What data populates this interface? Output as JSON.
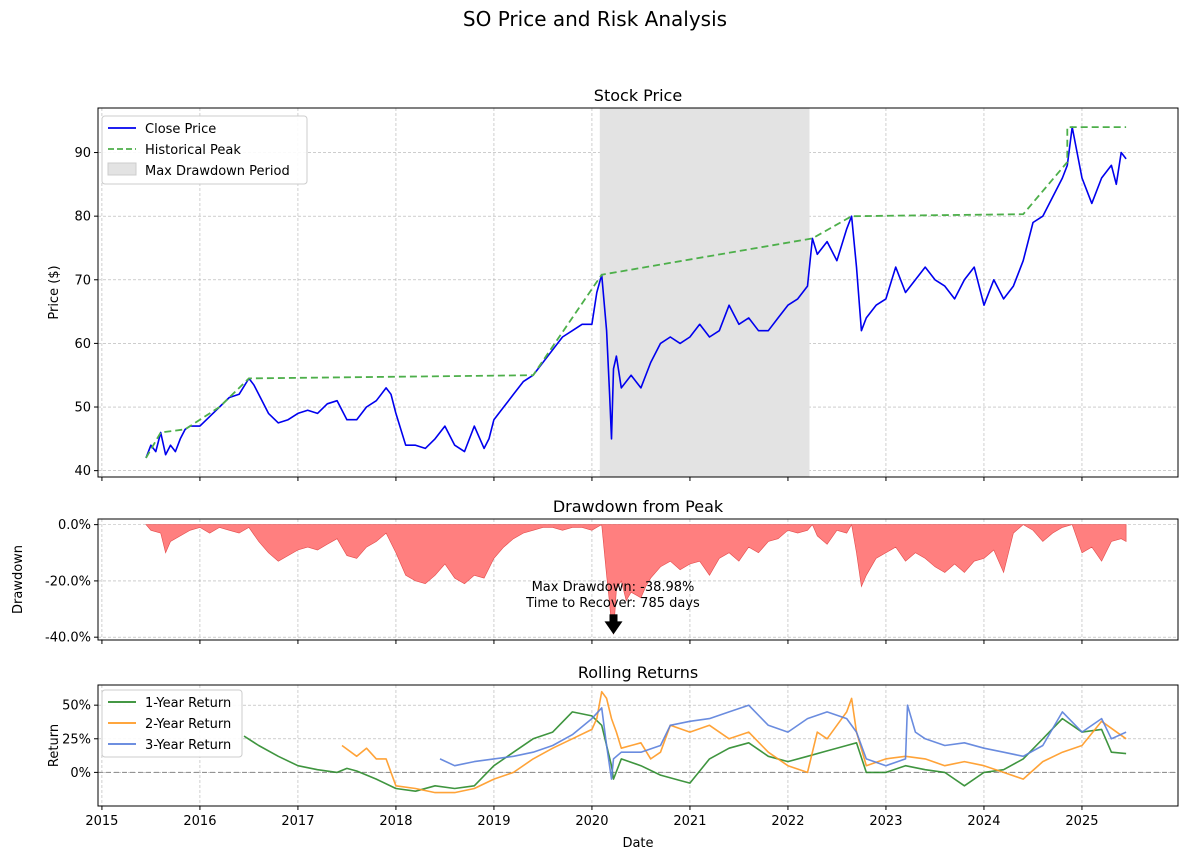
{
  "figure": {
    "suptitle": "SO Price and Risk Analysis"
  },
  "colors": {
    "price": "#0000ee",
    "peak": "#4daf4a",
    "drawdown_fill": "#ff7f7f",
    "drawdown_edge": "#e34a4a",
    "shade": "#e3e3e3",
    "r1": "#2a8a2a",
    "r2": "#ff9922",
    "r3": "#5a7fdc",
    "grid": "#b0b0b0"
  },
  "chart_data": [
    {
      "type": "line",
      "title": "Stock Price",
      "xlabel": "",
      "ylabel": "Price ($)",
      "ylim": [
        39,
        97
      ],
      "yticks": [
        40,
        50,
        60,
        70,
        80,
        90
      ],
      "ytick_labels": [
        "40",
        "50",
        "60",
        "70",
        "80",
        "90"
      ],
      "xlim": [
        2014.96,
        2025.98
      ],
      "grid": true,
      "legend": {
        "position": "top-left",
        "entries": [
          "Close Price",
          "Historical Peak",
          "Max Drawdown Period"
        ]
      },
      "shaded_region": {
        "label": "Max Drawdown Period",
        "x": [
          2020.08,
          2022.22
        ]
      },
      "series": [
        {
          "name": "Close Price",
          "style": "solid",
          "x": [
            2015.45,
            2015.5,
            2015.55,
            2015.6,
            2015.65,
            2015.7,
            2015.75,
            2015.8,
            2015.85,
            2015.9,
            2016.0,
            2016.1,
            2016.2,
            2016.3,
            2016.4,
            2016.5,
            2016.55,
            2016.6,
            2016.7,
            2016.8,
            2016.9,
            2017.0,
            2017.1,
            2017.2,
            2017.3,
            2017.4,
            2017.5,
            2017.6,
            2017.7,
            2017.8,
            2017.9,
            2017.95,
            2018.0,
            2018.1,
            2018.2,
            2018.3,
            2018.4,
            2018.5,
            2018.6,
            2018.7,
            2018.8,
            2018.9,
            2018.95,
            2019.0,
            2019.1,
            2019.2,
            2019.3,
            2019.4,
            2019.5,
            2019.6,
            2019.7,
            2019.8,
            2019.9,
            2020.0,
            2020.05,
            2020.1,
            2020.15,
            2020.18,
            2020.2,
            2020.22,
            2020.25,
            2020.3,
            2020.4,
            2020.5,
            2020.6,
            2020.7,
            2020.8,
            2020.9,
            2021.0,
            2021.1,
            2021.2,
            2021.3,
            2021.4,
            2021.5,
            2021.6,
            2021.7,
            2021.8,
            2021.9,
            2022.0,
            2022.1,
            2022.2,
            2022.25,
            2022.3,
            2022.4,
            2022.5,
            2022.6,
            2022.65,
            2022.7,
            2022.75,
            2022.8,
            2022.9,
            2023.0,
            2023.1,
            2023.2,
            2023.3,
            2023.4,
            2023.5,
            2023.6,
            2023.7,
            2023.8,
            2023.9,
            2024.0,
            2024.1,
            2024.2,
            2024.3,
            2024.4,
            2024.5,
            2024.6,
            2024.7,
            2024.8,
            2024.85,
            2024.9,
            2025.0,
            2025.1,
            2025.2,
            2025.3,
            2025.35,
            2025.4,
            2025.45
          ],
          "y": [
            42,
            44,
            43,
            46,
            42.5,
            44,
            43,
            45,
            46.5,
            47,
            47,
            48.5,
            50,
            51.5,
            52,
            54.5,
            53.5,
            52,
            49,
            47.5,
            48,
            49,
            49.5,
            49,
            50.5,
            51,
            48,
            48,
            50,
            51,
            53,
            52,
            49,
            44,
            44,
            43.5,
            45,
            47,
            44,
            43,
            47,
            43.5,
            45,
            48,
            50,
            52,
            54,
            55,
            57,
            59,
            61,
            62,
            63,
            63,
            68,
            70.8,
            62,
            52,
            45,
            56,
            58,
            53,
            55,
            53,
            57,
            60,
            61,
            60,
            61,
            63,
            61,
            62,
            66,
            63,
            64,
            62,
            62,
            64,
            66,
            67,
            69,
            76.5,
            74,
            76,
            73,
            78,
            80,
            72,
            62,
            64,
            66,
            67,
            72,
            68,
            70,
            72,
            70,
            69,
            67,
            70,
            72,
            66,
            70,
            67,
            69,
            73,
            79,
            80,
            83,
            86,
            88,
            94,
            86,
            82,
            86,
            88,
            85,
            90,
            89
          ]
        },
        {
          "name": "Historical Peak",
          "style": "dashed",
          "x": [
            2015.45,
            2015.6,
            2015.85,
            2015.85,
            2016.2,
            2016.2,
            2016.5,
            2016.5,
            2019.4,
            2019.4,
            2020.1,
            2020.1,
            2022.25,
            2022.25,
            2022.65,
            2022.65,
            2024.4,
            2024.4,
            2024.85,
            2024.85,
            2025.45
          ],
          "y": [
            42,
            46,
            46.5,
            46.5,
            50,
            50,
            54.5,
            54.5,
            55,
            55,
            70.8,
            70.8,
            76.5,
            76.5,
            80,
            80,
            80.3,
            80.3,
            88.5,
            94,
            94
          ]
        }
      ]
    },
    {
      "type": "area",
      "title": "Drawdown from Peak",
      "xlabel": "",
      "ylabel": "Drawdown",
      "ylim": [
        -41,
        2
      ],
      "yticks": [
        0,
        -20,
        -40
      ],
      "ytick_labels": [
        "0.0%",
        "-20.0%",
        "-40.0%"
      ],
      "xlim": [
        2014.96,
        2025.98
      ],
      "grid": true,
      "annotation": {
        "text_line1": "Max Drawdown: -38.98%",
        "text_line2": "Time to Recover: 785 days",
        "x": 2020.22,
        "y": -38.98
      },
      "series": [
        {
          "name": "Drawdown",
          "x": [
            2015.45,
            2015.5,
            2015.6,
            2015.65,
            2015.7,
            2015.8,
            2015.9,
            2016.0,
            2016.1,
            2016.2,
            2016.3,
            2016.4,
            2016.5,
            2016.6,
            2016.7,
            2016.8,
            2016.9,
            2017.0,
            2017.1,
            2017.2,
            2017.3,
            2017.4,
            2017.5,
            2017.6,
            2017.7,
            2017.8,
            2017.9,
            2018.0,
            2018.1,
            2018.2,
            2018.3,
            2018.4,
            2018.5,
            2018.6,
            2018.7,
            2018.8,
            2018.9,
            2019.0,
            2019.1,
            2019.2,
            2019.3,
            2019.4,
            2019.5,
            2019.6,
            2019.7,
            2019.8,
            2019.9,
            2020.0,
            2020.05,
            2020.1,
            2020.15,
            2020.18,
            2020.2,
            2020.22,
            2020.25,
            2020.3,
            2020.35,
            2020.4,
            2020.45,
            2020.5,
            2020.55,
            2020.6,
            2020.7,
            2020.8,
            2020.9,
            2021.0,
            2021.1,
            2021.2,
            2021.3,
            2021.4,
            2021.5,
            2021.6,
            2021.7,
            2021.8,
            2021.9,
            2022.0,
            2022.1,
            2022.2,
            2022.25,
            2022.3,
            2022.4,
            2022.5,
            2022.6,
            2022.65,
            2022.7,
            2022.75,
            2022.8,
            2022.85,
            2022.9,
            2023.0,
            2023.1,
            2023.2,
            2023.3,
            2023.4,
            2023.5,
            2023.6,
            2023.7,
            2023.8,
            2023.9,
            2024.0,
            2024.1,
            2024.2,
            2024.3,
            2024.4,
            2024.5,
            2024.6,
            2024.7,
            2024.8,
            2024.9,
            2025.0,
            2025.1,
            2025.2,
            2025.3,
            2025.4,
            2025.45
          ],
          "y": [
            0,
            -2,
            -3,
            -10,
            -6,
            -4,
            -2,
            -1,
            -3,
            -1,
            -2,
            -3,
            -1,
            -6,
            -10,
            -13,
            -11,
            -9,
            -8,
            -9,
            -7,
            -5,
            -11,
            -12,
            -8,
            -6,
            -3,
            -10,
            -18,
            -20,
            -21,
            -18,
            -14,
            -19,
            -21,
            -18,
            -19,
            -12,
            -8,
            -5,
            -3,
            -2,
            -1,
            -1,
            -2,
            -1,
            -1,
            -2,
            -1,
            0,
            -18,
            -28,
            -36,
            -38.98,
            -23,
            -20,
            -27,
            -24,
            -25,
            -26,
            -22,
            -19,
            -15,
            -13,
            -16,
            -14,
            -13,
            -18,
            -12,
            -10,
            -13,
            -8,
            -10,
            -6,
            -5,
            -2,
            -3,
            -2,
            0,
            -4,
            -7,
            -2,
            -3,
            0,
            -10,
            -22,
            -18,
            -15,
            -12,
            -10,
            -8,
            -13,
            -10,
            -12,
            -15,
            -17,
            -14,
            -17,
            -13,
            -12,
            -9,
            -17,
            -3,
            0,
            -2,
            -6,
            -3,
            -1,
            0,
            -10,
            -8,
            -13,
            -6,
            -5,
            -6
          ]
        }
      ]
    },
    {
      "type": "line",
      "title": "Rolling Returns",
      "xlabel": "Date",
      "ylabel": "Return",
      "ylim": [
        -0.25,
        0.65
      ],
      "yticks": [
        0,
        0.25,
        0.5
      ],
      "ytick_labels": [
        "0%",
        "25%",
        "50%"
      ],
      "xlim": [
        2014.96,
        2025.98
      ],
      "xticks": [
        2015,
        2016,
        2017,
        2018,
        2019,
        2020,
        2021,
        2022,
        2023,
        2024,
        2025
      ],
      "xtick_labels": [
        "2015",
        "2016",
        "2017",
        "2018",
        "2019",
        "2020",
        "2021",
        "2022",
        "2023",
        "2024",
        "2025"
      ],
      "grid": true,
      "zero_line": true,
      "legend": {
        "position": "top-left",
        "entries": [
          "1-Year Return",
          "2-Year Return",
          "3-Year Return"
        ]
      },
      "series": [
        {
          "name": "1-Year Return",
          "x": [
            2016.45,
            2016.6,
            2016.8,
            2017.0,
            2017.2,
            2017.4,
            2017.5,
            2017.6,
            2017.8,
            2018.0,
            2018.2,
            2018.4,
            2018.6,
            2018.8,
            2019.0,
            2019.2,
            2019.4,
            2019.6,
            2019.8,
            2020.0,
            2020.1,
            2020.2,
            2020.22,
            2020.3,
            2020.5,
            2020.7,
            2020.9,
            2021.0,
            2021.2,
            2021.4,
            2021.6,
            2021.8,
            2022.0,
            2022.2,
            2022.4,
            2022.6,
            2022.7,
            2022.8,
            2023.0,
            2023.2,
            2023.4,
            2023.6,
            2023.8,
            2024.0,
            2024.2,
            2024.4,
            2024.6,
            2024.8,
            2024.9,
            2025.0,
            2025.2,
            2025.3,
            2025.45
          ],
          "y": [
            0.27,
            0.2,
            0.12,
            0.05,
            0.02,
            0,
            0.03,
            0.01,
            -0.05,
            -0.12,
            -0.14,
            -0.1,
            -0.12,
            -0.1,
            0.05,
            0.15,
            0.25,
            0.3,
            0.45,
            0.42,
            0.35,
            0.05,
            -0.05,
            0.1,
            0.05,
            -0.02,
            -0.06,
            -0.08,
            0.1,
            0.18,
            0.22,
            0.12,
            0.08,
            0.12,
            0.16,
            0.2,
            0.22,
            0.0,
            0.0,
            0.05,
            0.02,
            0.0,
            -0.1,
            0.0,
            0.02,
            0.1,
            0.25,
            0.4,
            0.35,
            0.3,
            0.32,
            0.15,
            0.14
          ]
        },
        {
          "name": "2-Year Return",
          "x": [
            2017.45,
            2017.6,
            2017.7,
            2017.8,
            2017.9,
            2018.0,
            2018.2,
            2018.4,
            2018.6,
            2018.8,
            2019.0,
            2019.2,
            2019.4,
            2019.6,
            2019.8,
            2020.0,
            2020.05,
            2020.1,
            2020.15,
            2020.2,
            2020.25,
            2020.3,
            2020.4,
            2020.5,
            2020.6,
            2020.7,
            2020.8,
            2021.0,
            2021.2,
            2021.4,
            2021.6,
            2021.8,
            2022.0,
            2022.2,
            2022.3,
            2022.4,
            2022.5,
            2022.6,
            2022.65,
            2022.7,
            2022.8,
            2023.0,
            2023.2,
            2023.4,
            2023.6,
            2023.8,
            2024.0,
            2024.2,
            2024.4,
            2024.6,
            2024.8,
            2025.0,
            2025.2,
            2025.45
          ],
          "y": [
            0.2,
            0.12,
            0.18,
            0.1,
            0.1,
            -0.1,
            -0.12,
            -0.15,
            -0.15,
            -0.12,
            -0.05,
            0.0,
            0.1,
            0.18,
            0.25,
            0.32,
            0.4,
            0.6,
            0.55,
            0.4,
            0.3,
            0.18,
            0.2,
            0.22,
            0.1,
            0.15,
            0.35,
            0.3,
            0.35,
            0.25,
            0.3,
            0.15,
            0.05,
            0.0,
            0.3,
            0.25,
            0.35,
            0.45,
            0.55,
            0.3,
            0.05,
            0.1,
            0.12,
            0.1,
            0.05,
            0.08,
            0.05,
            0.0,
            -0.05,
            0.08,
            0.15,
            0.2,
            0.38,
            0.25
          ]
        },
        {
          "name": "3-Year Return",
          "x": [
            2018.45,
            2018.6,
            2018.8,
            2019.0,
            2019.2,
            2019.4,
            2019.6,
            2019.8,
            2020.0,
            2020.1,
            2020.15,
            2020.2,
            2020.22,
            2020.3,
            2020.5,
            2020.7,
            2020.8,
            2021.0,
            2021.2,
            2021.4,
            2021.6,
            2021.8,
            2022.0,
            2022.2,
            2022.4,
            2022.6,
            2022.7,
            2022.8,
            2023.0,
            2023.2,
            2023.22,
            2023.3,
            2023.4,
            2023.6,
            2023.8,
            2024.0,
            2024.2,
            2024.4,
            2024.6,
            2024.8,
            2025.0,
            2025.2,
            2025.3,
            2025.45
          ],
          "y": [
            0.1,
            0.05,
            0.08,
            0.1,
            0.12,
            0.15,
            0.2,
            0.28,
            0.4,
            0.48,
            0.2,
            -0.05,
            0.1,
            0.15,
            0.15,
            0.2,
            0.35,
            0.38,
            0.4,
            0.45,
            0.5,
            0.35,
            0.3,
            0.4,
            0.45,
            0.4,
            0.3,
            0.1,
            0.05,
            0.1,
            0.5,
            0.3,
            0.25,
            0.2,
            0.22,
            0.18,
            0.15,
            0.12,
            0.2,
            0.45,
            0.3,
            0.4,
            0.25,
            0.3
          ]
        }
      ]
    }
  ]
}
